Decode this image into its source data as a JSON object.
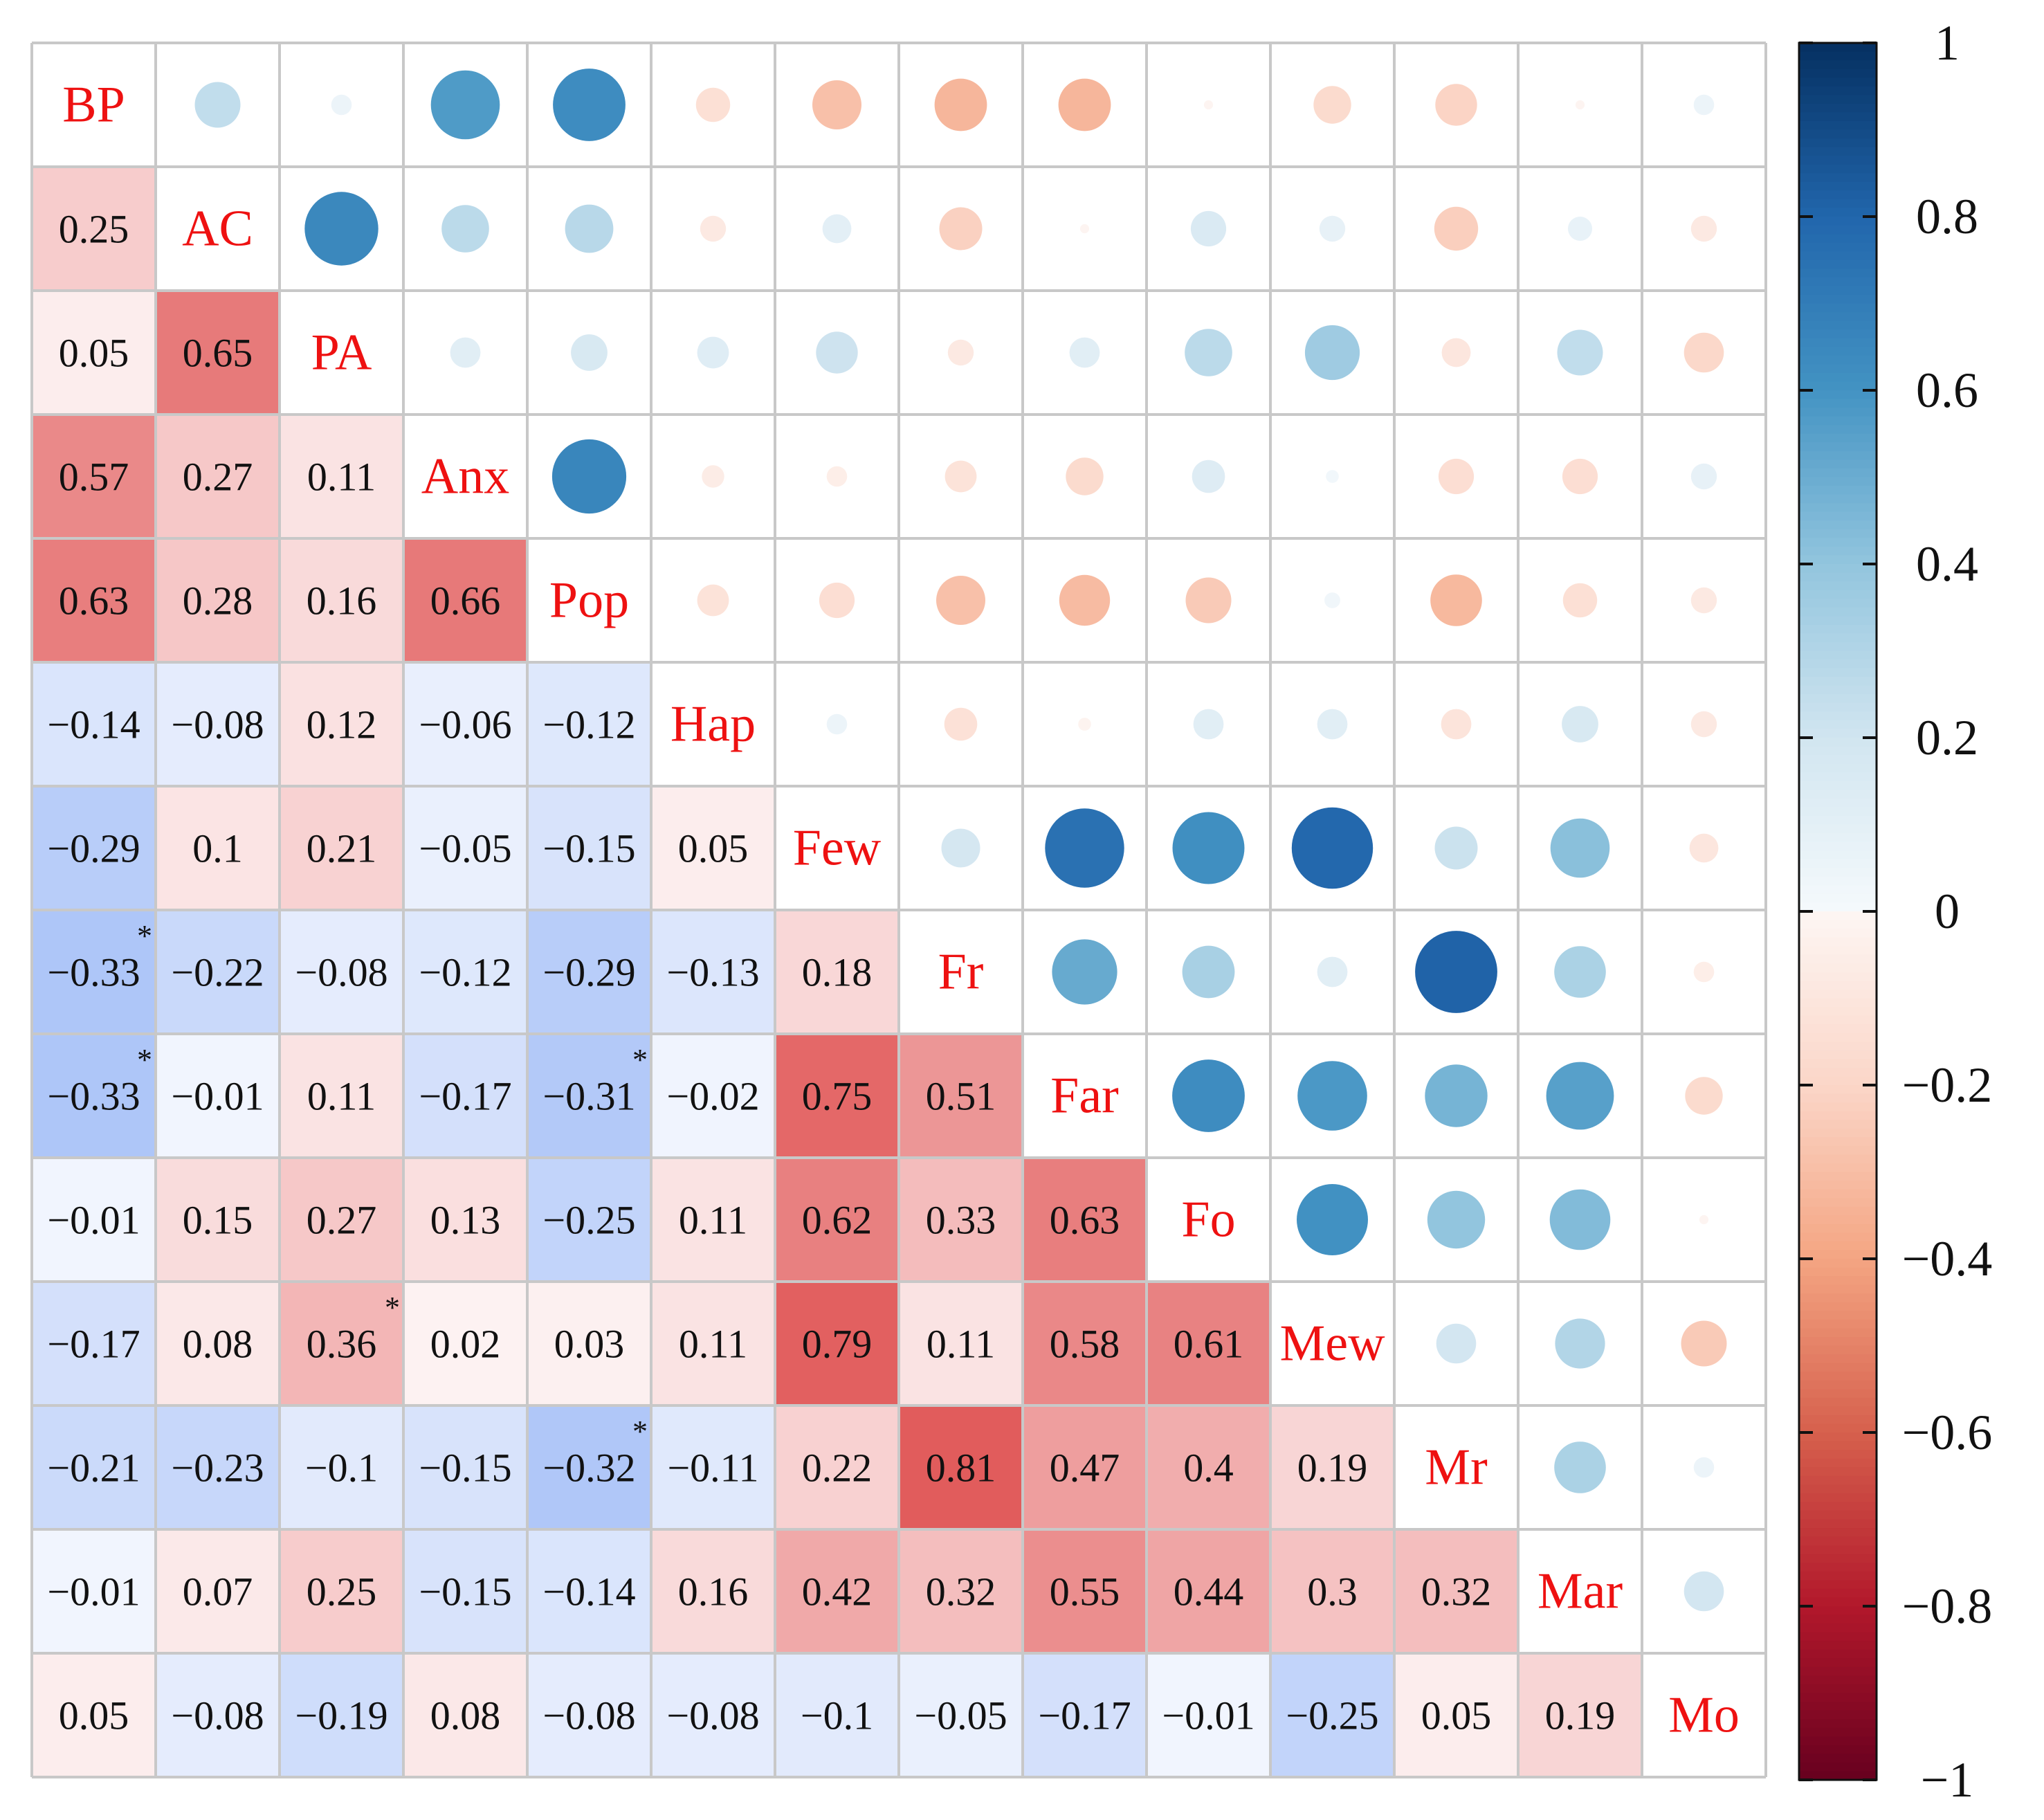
{
  "chart_data": {
    "type": "heatmap",
    "title": "",
    "variables": [
      "BP",
      "AC",
      "PA",
      "Anx",
      "Pop",
      "Hap",
      "Few",
      "Fr",
      "Far",
      "Fo",
      "Mew",
      "Mr",
      "Mar",
      "Mo"
    ],
    "matrix": [
      [
        1,
        0.25,
        0.05,
        0.57,
        0.63,
        -0.14,
        -0.29,
        -0.33,
        -0.33,
        -0.01,
        -0.17,
        -0.21,
        -0.01,
        0.05
      ],
      [
        0.25,
        1,
        0.65,
        0.27,
        0.28,
        -0.08,
        0.1,
        -0.22,
        -0.01,
        0.15,
        0.08,
        -0.23,
        0.07,
        -0.08
      ],
      [
        0.05,
        0.65,
        1,
        0.11,
        0.16,
        0.12,
        0.21,
        -0.08,
        0.11,
        0.27,
        0.36,
        -0.1,
        0.25,
        -0.19
      ],
      [
        0.57,
        0.27,
        0.11,
        1,
        0.66,
        -0.06,
        -0.05,
        -0.12,
        -0.17,
        0.13,
        0.02,
        -0.15,
        -0.15,
        0.08
      ],
      [
        0.63,
        0.28,
        0.16,
        0.66,
        1,
        -0.12,
        -0.15,
        -0.29,
        -0.31,
        -0.25,
        0.03,
        -0.32,
        -0.14,
        -0.08
      ],
      [
        -0.14,
        -0.08,
        0.12,
        -0.06,
        -0.12,
        1,
        0.05,
        -0.13,
        -0.02,
        0.11,
        0.11,
        -0.11,
        0.16,
        -0.08
      ],
      [
        -0.29,
        0.1,
        0.21,
        -0.05,
        -0.15,
        0.05,
        1,
        0.18,
        0.75,
        0.62,
        0.79,
        0.22,
        0.42,
        -0.1
      ],
      [
        -0.33,
        -0.22,
        -0.08,
        -0.12,
        -0.29,
        -0.13,
        0.18,
        1,
        0.51,
        0.33,
        0.11,
        0.81,
        0.32,
        -0.05
      ],
      [
        -0.33,
        -0.01,
        0.11,
        -0.17,
        -0.31,
        -0.02,
        0.75,
        0.51,
        1,
        0.63,
        0.58,
        0.47,
        0.55,
        -0.17
      ],
      [
        -0.01,
        0.15,
        0.27,
        0.13,
        -0.25,
        0.11,
        0.62,
        0.33,
        0.63,
        1,
        0.61,
        0.4,
        0.44,
        -0.01
      ],
      [
        -0.17,
        0.08,
        0.36,
        0.02,
        0.03,
        0.11,
        0.79,
        0.11,
        0.58,
        0.61,
        1,
        0.19,
        0.3,
        -0.25
      ],
      [
        -0.21,
        -0.23,
        -0.1,
        -0.15,
        -0.32,
        -0.11,
        0.22,
        0.81,
        0.47,
        0.4,
        0.19,
        1,
        0.32,
        0.05
      ],
      [
        -0.01,
        0.07,
        0.25,
        -0.15,
        -0.14,
        0.16,
        0.42,
        0.32,
        0.55,
        0.44,
        0.3,
        0.32,
        1,
        0.19
      ],
      [
        0.05,
        -0.08,
        -0.19,
        0.08,
        -0.08,
        -0.08,
        -0.1,
        -0.05,
        -0.17,
        -0.01,
        -0.25,
        0.05,
        0.19,
        1
      ]
    ],
    "significant": [
      [
        7,
        0
      ],
      [
        8,
        0
      ],
      [
        8,
        4
      ],
      [
        10,
        2
      ],
      [
        11,
        4
      ]
    ],
    "significance_marker": "*",
    "lower_triangle": "numbers",
    "upper_triangle": "circles",
    "colorbar": {
      "range": [
        -1,
        1
      ],
      "ticks": [
        1,
        0.8,
        0.6,
        0.4,
        0.2,
        0,
        -0.2,
        -0.4,
        -0.6,
        -0.8,
        -1
      ],
      "tick_labels": [
        "1",
        "0.8",
        "0.6",
        "0.4",
        "0.2",
        "0",
        "−0.2",
        "−0.4",
        "−0.6",
        "−0.8",
        "−1"
      ],
      "placement": "right"
    },
    "colors": {
      "positive_stops": [
        "#fdf6f3",
        "#fbd6c8",
        "#f4a582",
        "#d6604d",
        "#b2182b",
        "#67001f"
      ],
      "negative_stops": [
        "#f5f9fc",
        "#d1e5f0",
        "#92c5de",
        "#4393c3",
        "#2166ac",
        "#053061"
      ],
      "lower_positive_stops": [
        "#fdf5f5",
        "#f6c6c6",
        "#ea8a8a",
        "#e05555"
      ],
      "lower_negative_stops": [
        "#f3f6fe",
        "#dfe8fc",
        "#c6d7fa",
        "#a9c2f7"
      ],
      "diagonal_label": "#ee1111",
      "grid": "#c8c8c8",
      "text": "#111111"
    }
  }
}
